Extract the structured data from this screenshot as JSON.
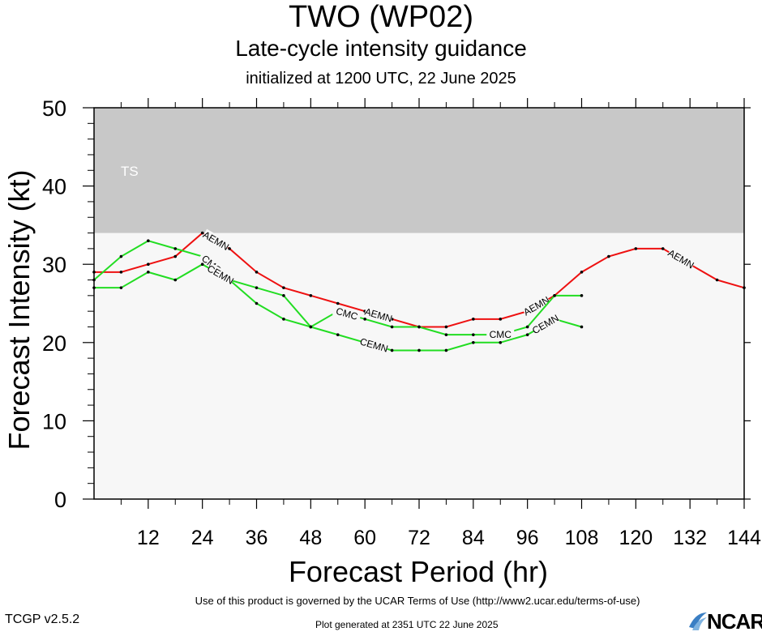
{
  "header": {
    "title": "TWO (WP02)",
    "subtitle": "Late-cycle intensity guidance",
    "initialized": "initialized at 1200 UTC, 22 June 2025"
  },
  "footer": {
    "terms": "Use of this product is governed by the UCAR Terms of Use (http://www2.ucar.edu/terms-of-use)",
    "version": "TCGP v2.5.2",
    "generated": "Plot generated at 2351 UTC   22 June 2025",
    "logo_text": "NCAR"
  },
  "colors": {
    "aemn": "#ee1111",
    "green": "#22dd22",
    "ts_band": "#c8c8c8",
    "plot_bg": "#f7f7f7"
  },
  "chart_data": {
    "type": "line",
    "xlabel": "Forecast Period (hr)",
    "ylabel": "Forecast Intensity (kt)",
    "xlim": [
      0,
      144
    ],
    "ylim": [
      0,
      50
    ],
    "xticks": [
      12,
      24,
      36,
      48,
      60,
      72,
      84,
      96,
      108,
      120,
      132,
      144
    ],
    "yticks": [
      0,
      10,
      20,
      30,
      40,
      50
    ],
    "bands": [
      {
        "label": "TS",
        "ymin": 34,
        "ymax": 50
      }
    ],
    "series": [
      {
        "name": "AEMN",
        "color": "#ee1111",
        "x": [
          0,
          6,
          12,
          18,
          24,
          30,
          36,
          42,
          48,
          54,
          60,
          66,
          72,
          78,
          84,
          90,
          96,
          102,
          108,
          114,
          120,
          126,
          132,
          138,
          144
        ],
        "values": [
          29,
          29,
          30,
          31,
          34,
          32,
          29,
          27,
          26,
          25,
          24,
          23,
          22,
          22,
          23,
          23,
          24,
          26,
          29,
          31,
          32,
          32,
          30,
          28,
          27
        ],
        "labels_at": [
          27,
          63,
          98,
          130
        ]
      },
      {
        "name": "CMC",
        "color": "#22dd22",
        "x": [
          0,
          6,
          12,
          18,
          24,
          30,
          36,
          42,
          48,
          54,
          60,
          66,
          72,
          78,
          84,
          90,
          96,
          102,
          108
        ],
        "values": [
          28,
          31,
          33,
          32,
          31,
          28,
          27,
          26,
          22,
          24,
          23,
          22,
          22,
          21,
          21,
          21,
          22,
          26,
          26
        ],
        "labels_at": [
          26,
          56,
          90
        ]
      },
      {
        "name": "CEMN",
        "color": "#22dd22",
        "x": [
          0,
          6,
          12,
          18,
          24,
          30,
          36,
          42,
          48,
          54,
          60,
          66,
          72,
          78,
          84,
          90,
          96,
          102,
          108
        ],
        "values": [
          27,
          27,
          29,
          28,
          30,
          28,
          25,
          23,
          22,
          21,
          20,
          19,
          19,
          19,
          20,
          20,
          21,
          23,
          22
        ],
        "labels_at": [
          28,
          62,
          100
        ]
      }
    ]
  }
}
